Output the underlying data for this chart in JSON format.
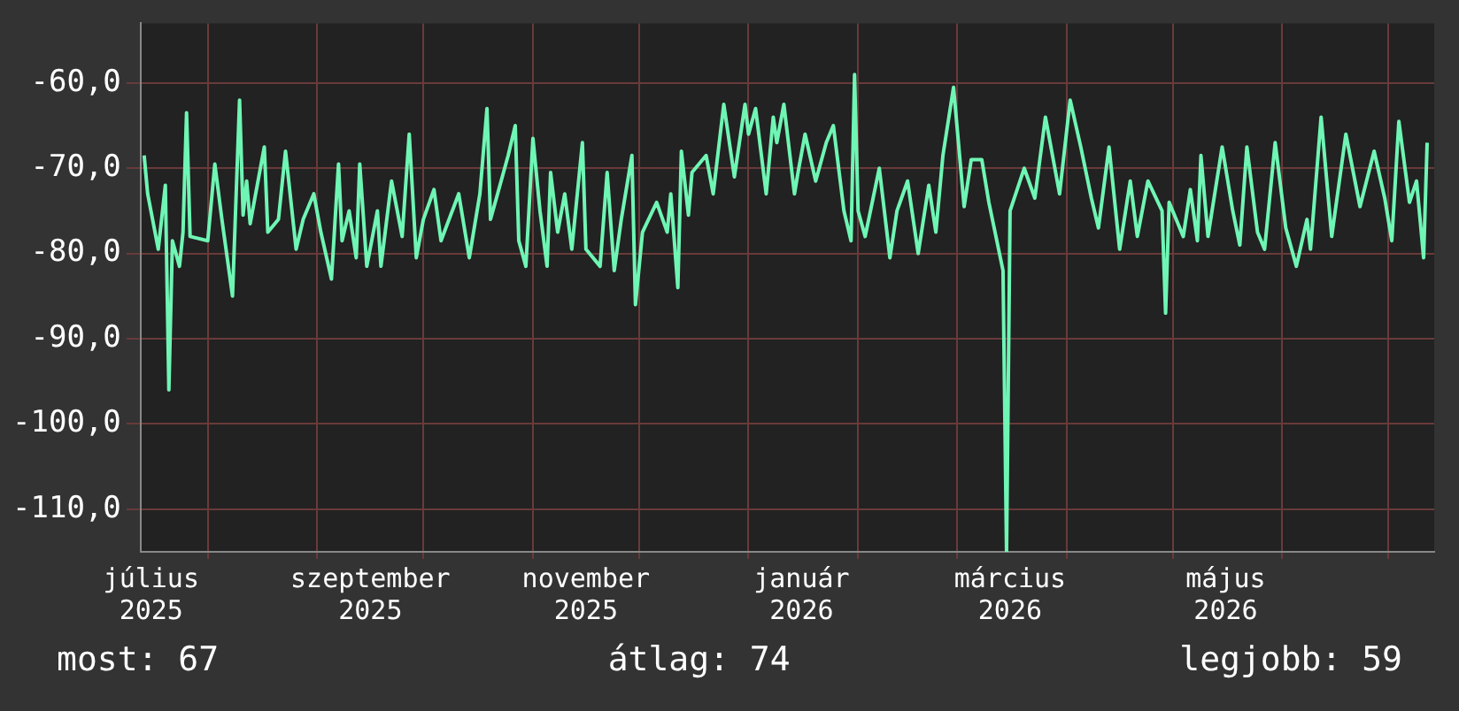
{
  "chart_data": {
    "type": "line",
    "xlim": [
      "2025-07-13",
      "2026-07-14"
    ],
    "ylim": [
      -115,
      -53
    ],
    "xticks": [
      {
        "value": "2025-07-16",
        "label": "július 2025"
      },
      {
        "value": "2025-08-01",
        "label": null
      },
      {
        "value": "2025-09-01",
        "label": null
      },
      {
        "value": "2025-09-16",
        "label": "szeptember 2025"
      },
      {
        "value": "2025-10-01",
        "label": null
      },
      {
        "value": "2025-11-01",
        "label": null
      },
      {
        "value": "2025-11-16",
        "label": "november 2025"
      },
      {
        "value": "2025-12-01",
        "label": null
      },
      {
        "value": "2026-01-01",
        "label": null
      },
      {
        "value": "2026-01-16",
        "label": "január 2026"
      },
      {
        "value": "2026-02-01",
        "label": null
      },
      {
        "value": "2026-03-01",
        "label": null
      },
      {
        "value": "2026-03-16",
        "label": "március 2026"
      },
      {
        "value": "2026-04-01",
        "label": null
      },
      {
        "value": "2026-05-01",
        "label": null
      },
      {
        "value": "2026-05-16",
        "label": "május 2026"
      },
      {
        "value": "2026-06-01",
        "label": null
      },
      {
        "value": "2026-07-01",
        "label": null
      }
    ],
    "yticks": [
      {
        "value": -60,
        "label": "-60,0"
      },
      {
        "value": -70,
        "label": "-70,0"
      },
      {
        "value": -80,
        "label": "-80,0"
      },
      {
        "value": -90,
        "label": "-90,0"
      },
      {
        "value": -100,
        "label": "-100,0"
      },
      {
        "value": -110,
        "label": "-110,0"
      }
    ],
    "grid": true,
    "legend": false,
    "marker": "none",
    "line_style": "solid",
    "annotations": [
      "most: 67",
      "átlag: 74",
      "legjobb: 59"
    ],
    "series": [
      {
        "color": "#6ff5b4",
        "x": [
          "2025-07-14",
          "2025-07-15",
          "2025-07-18",
          "2025-07-20",
          "2025-07-21",
          "2025-07-22",
          "2025-07-24",
          "2025-07-25",
          "2025-07-26",
          "2025-07-27",
          "2025-08-01",
          "2025-08-03",
          "2025-08-05",
          "2025-08-08",
          "2025-08-10",
          "2025-08-11",
          "2025-08-12",
          "2025-08-13",
          "2025-08-17",
          "2025-08-18",
          "2025-08-21",
          "2025-08-23",
          "2025-08-26",
          "2025-08-28",
          "2025-08-31",
          "2025-09-02",
          "2025-09-05",
          "2025-09-07",
          "2025-09-08",
          "2025-09-10",
          "2025-09-12",
          "2025-09-13",
          "2025-09-15",
          "2025-09-18",
          "2025-09-19",
          "2025-09-22",
          "2025-09-25",
          "2025-09-27",
          "2025-09-29",
          "2025-10-01",
          "2025-10-04",
          "2025-10-06",
          "2025-10-11",
          "2025-10-14",
          "2025-10-17",
          "2025-10-19",
          "2025-10-20",
          "2025-10-22",
          "2025-10-25",
          "2025-10-27",
          "2025-10-28",
          "2025-10-30",
          "2025-11-01",
          "2025-11-03",
          "2025-11-05",
          "2025-11-06",
          "2025-11-08",
          "2025-11-10",
          "2025-11-12",
          "2025-11-15",
          "2025-11-16",
          "2025-11-20",
          "2025-11-22",
          "2025-11-24",
          "2025-11-26",
          "2025-11-29",
          "2025-11-30",
          "2025-12-02",
          "2025-12-06",
          "2025-12-09",
          "2025-12-10",
          "2025-12-12",
          "2025-12-13",
          "2025-12-15",
          "2025-12-16",
          "2025-12-20",
          "2025-12-22",
          "2025-12-24",
          "2025-12-25",
          "2025-12-28",
          "2025-12-31",
          "2026-01-01",
          "2026-01-03",
          "2026-01-06",
          "2026-01-08",
          "2026-01-09",
          "2026-01-11",
          "2026-01-14",
          "2026-01-15",
          "2026-01-17",
          "2026-01-20",
          "2026-01-23",
          "2026-01-25",
          "2026-01-28",
          "2026-01-30",
          "2026-01-31",
          "2026-02-01",
          "2026-02-03",
          "2026-02-07",
          "2026-02-10",
          "2026-02-12",
          "2026-02-15",
          "2026-02-18",
          "2026-02-21",
          "2026-02-23",
          "2026-02-25",
          "2026-02-28",
          "2026-03-03",
          "2026-03-05",
          "2026-03-08",
          "2026-03-10",
          "2026-03-14",
          "2026-03-15",
          "2026-03-16",
          "2026-03-20",
          "2026-03-23",
          "2026-03-26",
          "2026-03-30",
          "2026-04-02",
          "2026-04-05",
          "2026-04-08",
          "2026-04-10",
          "2026-04-13",
          "2026-04-16",
          "2026-04-19",
          "2026-04-21",
          "2026-04-24",
          "2026-04-28",
          "2026-04-29",
          "2026-04-30",
          "2026-05-04",
          "2026-05-06",
          "2026-05-08",
          "2026-05-09",
          "2026-05-11",
          "2026-05-15",
          "2026-05-18",
          "2026-05-20",
          "2026-05-22",
          "2026-05-25",
          "2026-05-27",
          "2026-05-30",
          "2026-06-02",
          "2026-06-05",
          "2026-06-08",
          "2026-06-09",
          "2026-06-12",
          "2026-06-15",
          "2026-06-19",
          "2026-06-23",
          "2026-06-27",
          "2026-06-30",
          "2026-07-02",
          "2026-07-04",
          "2026-07-07",
          "2026-07-09",
          "2026-07-11",
          "2026-07-12"
        ],
        "values": [
          -68.5,
          -73,
          -79.5,
          -72,
          -96,
          -78.5,
          -81.5,
          -77.5,
          -63.5,
          -78,
          -78.5,
          -69.5,
          -76,
          -85,
          -62,
          -75.5,
          -71.5,
          -76.5,
          -67.5,
          -77.5,
          -76,
          -68,
          -79.5,
          -76,
          -73,
          -77.5,
          -83,
          -69.5,
          -78.5,
          -75,
          -80.5,
          -69.5,
          -81.5,
          -75,
          -81.5,
          -71.5,
          -78,
          -66,
          -80.5,
          -76,
          -72.5,
          -78.5,
          -73,
          -80.5,
          -73,
          -63,
          -76,
          -73,
          -68.5,
          -65,
          -78.5,
          -81.5,
          -66.5,
          -75,
          -81.5,
          -70.5,
          -77.5,
          -73,
          -79.5,
          -67,
          -79.5,
          -81.5,
          -70.5,
          -82,
          -76,
          -68.5,
          -86,
          -77.5,
          -74,
          -77.5,
          -73,
          -84,
          -68,
          -75.5,
          -70.5,
          -68.5,
          -73,
          -66,
          -62.5,
          -71,
          -62.5,
          -66,
          -63,
          -73,
          -64,
          -67,
          -62.5,
          -73,
          -70.5,
          -66,
          -71.5,
          -67,
          -65,
          -75,
          -78.5,
          -59,
          -75,
          -78,
          -70,
          -80.5,
          -75,
          -71.5,
          -80,
          -72,
          -77.5,
          -68.5,
          -60.5,
          -74.5,
          -69,
          -69,
          -74,
          -82,
          -115,
          -75,
          -70,
          -73.5,
          -64,
          -73,
          -62,
          -67.5,
          -73.5,
          -77,
          -67.5,
          -79.5,
          -71.5,
          -78,
          -71.5,
          -75,
          -87,
          -74,
          -78,
          -72.5,
          -78.5,
          -68.5,
          -78,
          -67.5,
          -75,
          -79,
          -67.5,
          -77.5,
          -79.5,
          -67,
          -77,
          -81.5,
          -76,
          -79.5,
          -64,
          -78,
          -66,
          -74.5,
          -68,
          -73.5,
          -78.5,
          -64.5,
          -74,
          -71.5,
          -80.5,
          -67
        ]
      }
    ]
  }
}
